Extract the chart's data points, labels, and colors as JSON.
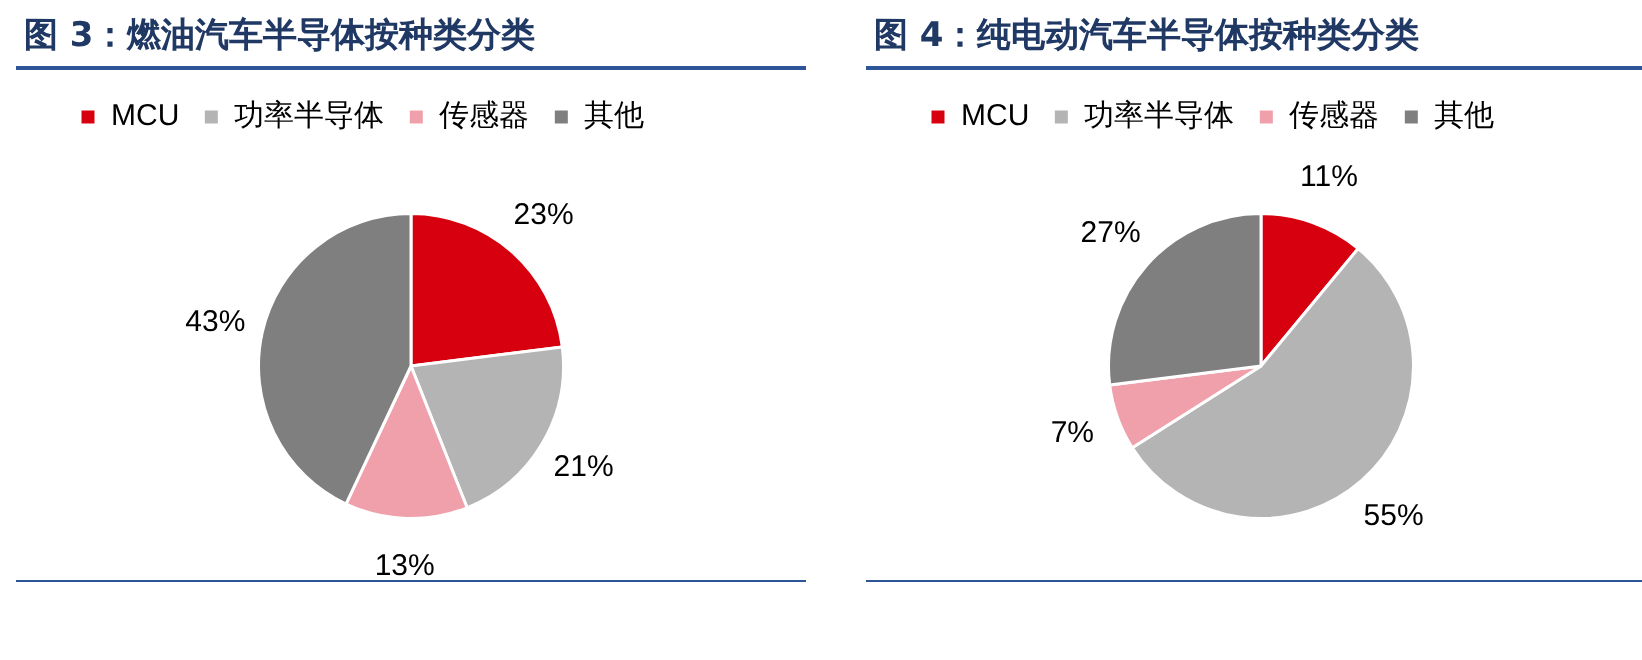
{
  "chart_data": [
    {
      "type": "pie",
      "title": "图 3：燃油汽车半导体按种类分类",
      "categories": [
        "MCU",
        "功率半导体",
        "传感器",
        "其他"
      ],
      "values": [
        23,
        21,
        13,
        43
      ],
      "value_labels": [
        "23%",
        "21%",
        "13%",
        "43%"
      ],
      "colors": [
        "#d7000f",
        "#b4b4b4",
        "#f0a0aa",
        "#7f7f7f"
      ],
      "legend": "top left"
    },
    {
      "type": "pie",
      "title": "图 4：纯电动汽车半导体按种类分类",
      "categories": [
        "MCU",
        "功率半导体",
        "传感器",
        "其他"
      ],
      "values": [
        11,
        55,
        7,
        27
      ],
      "value_labels": [
        "11%",
        "55%",
        "7%",
        "27%"
      ],
      "colors": [
        "#d7000f",
        "#b4b4b4",
        "#f0a0aa",
        "#7f7f7f"
      ],
      "legend": "top left"
    }
  ]
}
